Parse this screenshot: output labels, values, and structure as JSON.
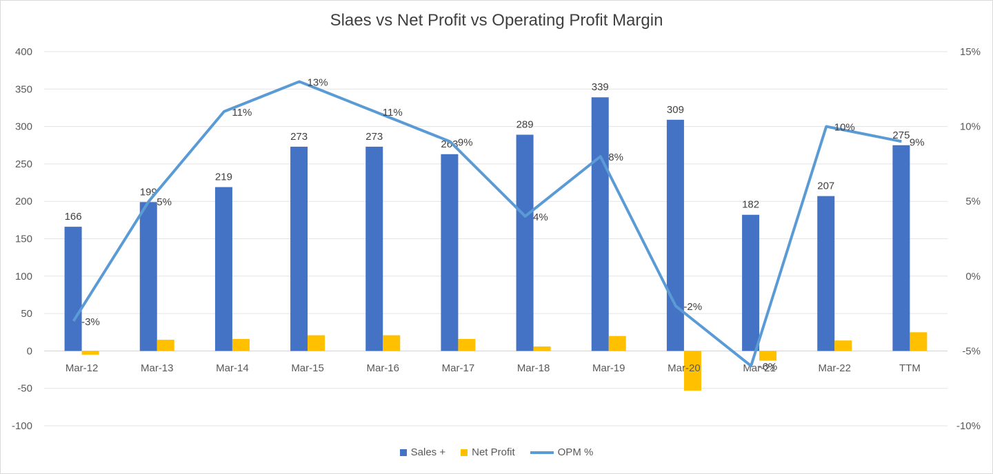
{
  "chart_data": {
    "type": "bar",
    "title": "Slaes vs Net Profit vs Operating Profit Margin",
    "categories": [
      "Mar-12",
      "Mar-13",
      "Mar-14",
      "Mar-15",
      "Mar-16",
      "Mar-17",
      "Mar-18",
      "Mar-19",
      "Mar-20",
      "Mar-21",
      "Mar-22",
      "TTM"
    ],
    "series": [
      {
        "name": "Sales +",
        "type": "bar",
        "axis": "left",
        "color": "#4472C4",
        "values": [
          166,
          199,
          219,
          273,
          273,
          263,
          289,
          339,
          309,
          182,
          207,
          275
        ],
        "labels": [
          "166",
          "199",
          "219",
          "273",
          "273",
          "263",
          "289",
          "339",
          "309",
          "182",
          "207",
          "275"
        ]
      },
      {
        "name": "Net Profit",
        "type": "bar",
        "axis": "left",
        "color": "#FFC000",
        "values": [
          -5,
          15,
          16,
          21,
          21,
          16,
          6,
          20,
          -53,
          -13,
          14,
          25
        ]
      },
      {
        "name": "OPM %",
        "type": "line",
        "axis": "right",
        "color": "#5B9BD5",
        "values": [
          -3,
          5,
          11,
          13,
          11,
          9,
          4,
          8,
          -2,
          -6,
          10,
          9
        ],
        "labels": [
          "-3%",
          "5%",
          "11%",
          "13%",
          "11%",
          "9%",
          "4%",
          "8%",
          "-2%",
          "-6%",
          "10%",
          "9%"
        ]
      }
    ],
    "y_left": {
      "min": -100,
      "max": 400,
      "step": 50,
      "ticks": [
        "400",
        "350",
        "300",
        "250",
        "200",
        "150",
        "100",
        "50",
        "0",
        "-50",
        "-100"
      ]
    },
    "y_right": {
      "min": -10,
      "max": 15,
      "step": 5,
      "ticks": [
        "15%",
        "10%",
        "5%",
        "0%",
        "-5%",
        "-10%"
      ]
    },
    "grid": true,
    "legend_position": "bottom"
  }
}
